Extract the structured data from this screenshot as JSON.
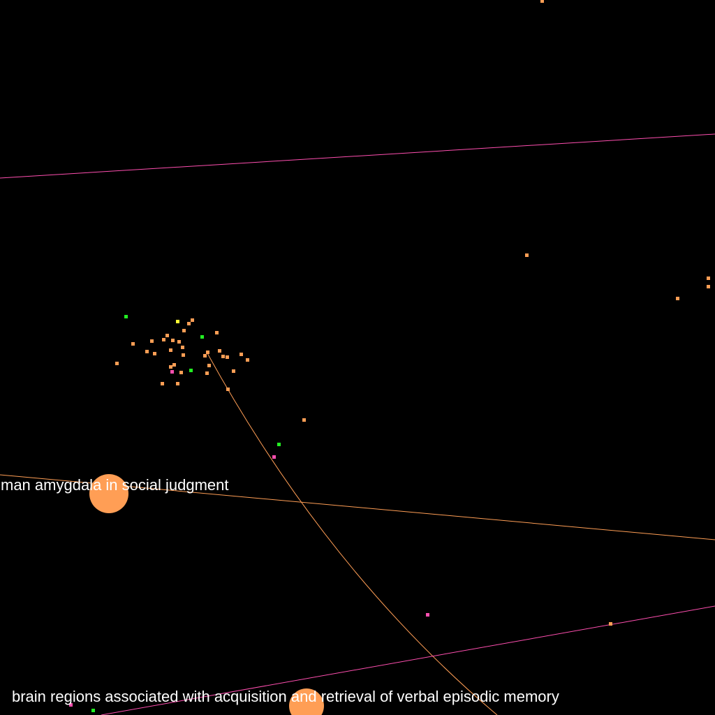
{
  "graph": {
    "background": "#000000",
    "colors": {
      "orange": "#ff9e55",
      "pink": "#ff4fb0",
      "green": "#22ee22",
      "yellow": "#ffff33",
      "white_text": "#ffffff"
    },
    "labels": {
      "amygdala": "man amygdala in social judgment",
      "memory": "brain regions associated with acquisition and retrieval of verbal episodic memory"
    }
  }
}
